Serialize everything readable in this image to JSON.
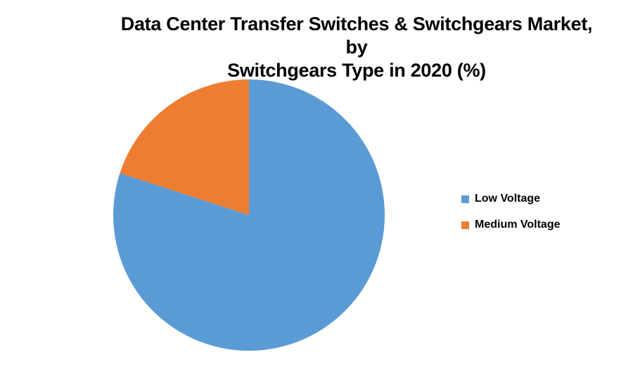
{
  "page": {
    "background_color": "#ffffff"
  },
  "chart_data": {
    "type": "pie",
    "title": "Data Center Transfer Switches & Switchgears Market, by Switchgears Type in 2020 (%)",
    "title_lines": [
      "Data Center Transfer Switches & Switchgears Market, by",
      "Switchgears Type in 2020 (%)"
    ],
    "unit": "%",
    "start_angle_deg": 0,
    "direction": "clockwise",
    "legend_position": "right",
    "segments": [
      {
        "label": "Low Voltage",
        "value": 80,
        "color": "#5B9BD5"
      },
      {
        "label": "Medium Voltage",
        "value": 20,
        "color": "#ED7D31"
      }
    ]
  }
}
